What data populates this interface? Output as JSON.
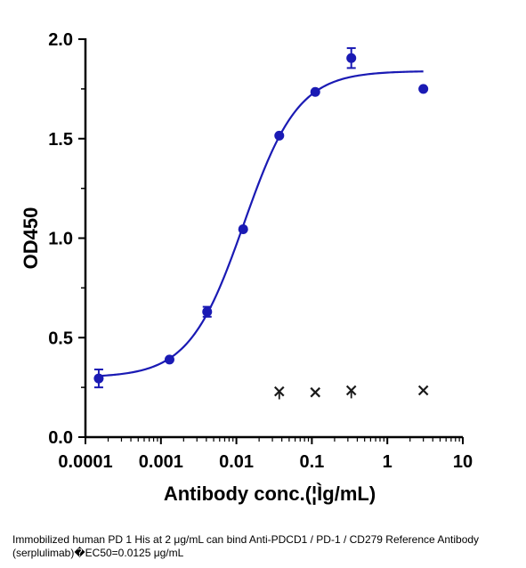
{
  "chart_data": {
    "type": "scatter",
    "xlabel": "Antibody conc.(¦Ìg/mL)",
    "ylabel": "OD450",
    "x_scale": "log",
    "xlim": [
      0.0001,
      10
    ],
    "ylim": [
      0.0,
      2.0
    ],
    "x_ticks": [
      "0.0001",
      "0.001",
      "0.01",
      "0.1",
      "1",
      "10"
    ],
    "y_ticks": [
      "0.0",
      "0.5",
      "1.0",
      "1.5",
      "2.0"
    ],
    "grid": false,
    "colors": {
      "series": "#1a1ab4",
      "control": "#1a1a1a"
    },
    "series": [
      {
        "marker": "circle",
        "x": [
          0.00015,
          0.0013,
          0.0041,
          0.0123,
          0.037,
          0.111,
          0.333,
          3.0
        ],
        "y": [
          0.295,
          0.39,
          0.63,
          1.045,
          1.515,
          1.735,
          1.905,
          1.75
        ],
        "err": [
          0.045,
          0.0,
          0.025,
          0.0,
          0.0,
          0.0,
          0.05,
          0.0
        ]
      },
      {
        "marker": "x",
        "x": [
          0.037,
          0.111,
          0.333,
          3.0
        ],
        "y": [
          0.23,
          0.225,
          0.235,
          0.235
        ],
        "err": [
          0.04,
          0.0,
          0.04,
          0.0
        ]
      }
    ],
    "fit": {
      "bottom": 0.3,
      "top": 1.84,
      "ec50": 0.0125,
      "hill": 1.2,
      "x_from": 0.00015,
      "x_to": 3.0
    }
  },
  "caption": "Immobilized human PD 1 His at 2  μg/mL can bind  Anti-PDCD1 / PD-1 / CD279 Reference Antibody (serplulimab)�EC50=0.0125 μg/mL"
}
